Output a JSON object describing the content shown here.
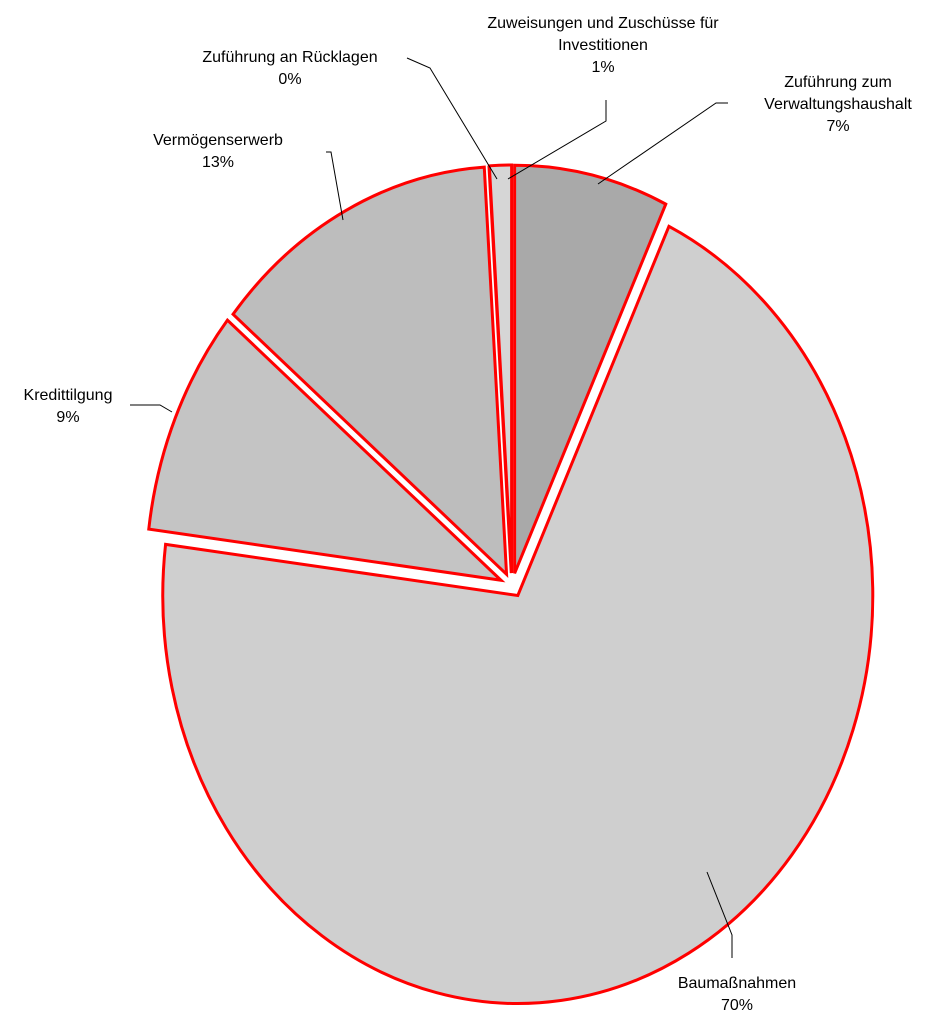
{
  "chart_data": {
    "type": "pie",
    "categories": [
      "Zuführung zum Verwaltungshaushalt",
      "Baumaßnahmen",
      "Kredittilgung",
      "Vermögenserwerb",
      "Zuführung an Rücklagen",
      "Zuweisungen und Zuschüsse für Investitionen"
    ],
    "values": [
      7,
      70,
      9,
      13,
      0,
      1
    ],
    "value_labels": [
      "7%",
      "70%",
      "9%",
      "13%",
      "0%",
      "1%"
    ],
    "colors": [
      "#a9a9a9",
      "#cfcfcf",
      "#c4c4c4",
      "#bdbdbd",
      "#d6d6d6",
      "#d6d6d6"
    ],
    "edge_color": "#ff0000",
    "direction": "clockwise"
  }
}
